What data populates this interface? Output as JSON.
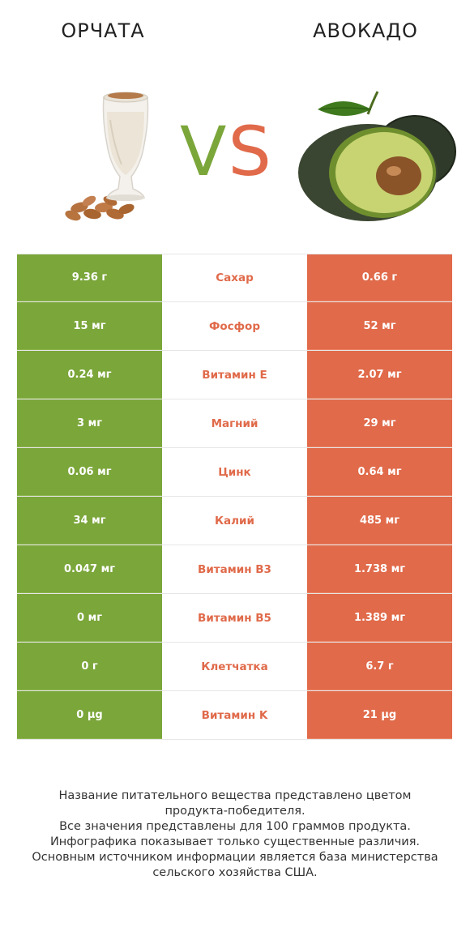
{
  "header": {
    "left_title": "ОРЧАТА",
    "right_title": "АВОКАДО",
    "vs_v": "V",
    "vs_s": "S"
  },
  "colors": {
    "left_winner": "#7ba63a",
    "right_winner": "#e06a4a"
  },
  "icons": {
    "left": "horchata-glass-with-almonds",
    "right": "avocado-halves"
  },
  "rows": [
    {
      "left": "9.36 г",
      "name": "Сахар",
      "right": "0.66 г"
    },
    {
      "left": "15 мг",
      "name": "Фосфор",
      "right": "52 мг"
    },
    {
      "left": "0.24 мг",
      "name": "Витамин E",
      "right": "2.07 мг"
    },
    {
      "left": "3 мг",
      "name": "Магний",
      "right": "29 мг"
    },
    {
      "left": "0.06 мг",
      "name": "Цинк",
      "right": "0.64 мг"
    },
    {
      "left": "34 мг",
      "name": "Калий",
      "right": "485 мг"
    },
    {
      "left": "0.047 мг",
      "name": "Витамин B3",
      "right": "1.738 мг"
    },
    {
      "left": "0 мг",
      "name": "Витамин B5",
      "right": "1.389 мг"
    },
    {
      "left": "0 г",
      "name": "Клетчатка",
      "right": "6.7 г"
    },
    {
      "left": "0 µg",
      "name": "Витамин K",
      "right": "21 µg"
    }
  ],
  "footer": {
    "line1": "Название питательного вещества представлено цветом",
    "line2": "продукта-победителя.",
    "line3": "Все значения представлены для 100 граммов продукта.",
    "line4": "Инфографика показывает только существенные различия.",
    "line5": "Основным источником информации является база министерства",
    "line6": "сельского хозяйства США."
  }
}
